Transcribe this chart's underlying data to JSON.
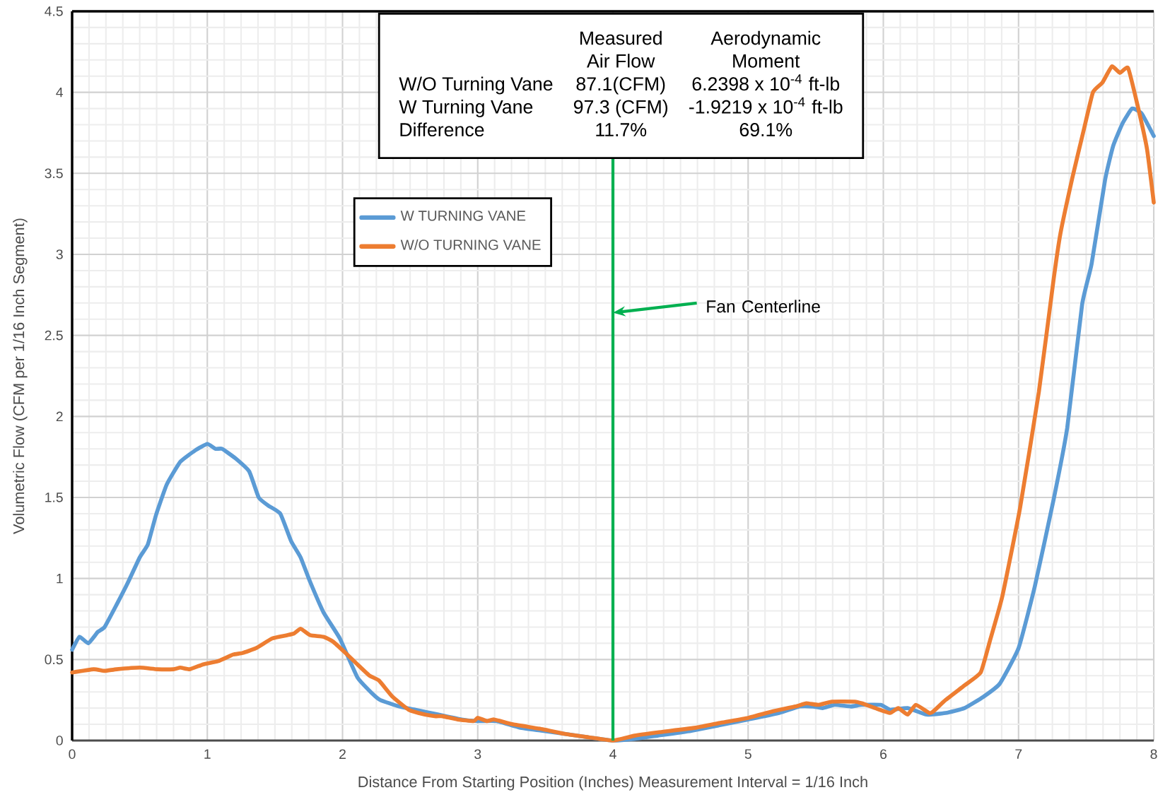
{
  "chart_data": {
    "type": "line",
    "xlabel": "Distance From Starting Position (Inches) Measurement Interval = 1/16 Inch",
    "ylabel": "Volumetric Flow (CFM per 1/16 Inch Segment)",
    "xlim": [
      0,
      8
    ],
    "ylim": [
      0,
      4.5
    ],
    "xticks": [
      0,
      1,
      2,
      3,
      4,
      5,
      6,
      7,
      8
    ],
    "yticks": [
      0,
      0.5,
      1,
      1.5,
      2,
      2.5,
      3,
      3.5,
      4,
      4.5
    ],
    "grid": true,
    "legend": "top left",
    "marker": "none",
    "line_style": "solid",
    "series": [
      {
        "name": "W TURNING VANE",
        "color": "#5b9bd5",
        "x": [
          0,
          0.055,
          0.12,
          0.19,
          0.24,
          0.33,
          0.41,
          0.5,
          0.56,
          0.62,
          0.7,
          0.8,
          0.91,
          1.0,
          1.06,
          1.11,
          1.21,
          1.31,
          1.38,
          1.45,
          1.54,
          1.62,
          1.69,
          1.76,
          1.86,
          1.98,
          2.11,
          2.22,
          2.28,
          2.42,
          2.54,
          2.71,
          2.88,
          3.0,
          3.14,
          3.31,
          3.48,
          3.65,
          3.82,
          4.0,
          4.16,
          4.33,
          4.58,
          5.0,
          5.23,
          5.38,
          5.48,
          5.55,
          5.64,
          5.76,
          5.84,
          5.98,
          6.05,
          6.18,
          6.32,
          6.46,
          6.6,
          6.74,
          6.86,
          7.0,
          7.12,
          7.26,
          7.36,
          7.47,
          7.54,
          7.64,
          7.7,
          7.77,
          7.84,
          7.91,
          8.0
        ],
        "values": [
          0.56,
          0.64,
          0.6,
          0.67,
          0.7,
          0.84,
          0.97,
          1.13,
          1.21,
          1.39,
          1.58,
          1.72,
          1.79,
          1.83,
          1.8,
          1.8,
          1.74,
          1.66,
          1.5,
          1.45,
          1.4,
          1.23,
          1.13,
          0.98,
          0.79,
          0.63,
          0.39,
          0.29,
          0.25,
          0.21,
          0.19,
          0.16,
          0.13,
          0.12,
          0.12,
          0.08,
          0.06,
          null,
          0.02,
          0.0,
          0.01,
          0.03,
          0.06,
          0.13,
          0.17,
          0.21,
          0.21,
          0.2,
          0.22,
          0.21,
          0.22,
          0.22,
          0.19,
          0.2,
          0.16,
          0.17,
          0.2,
          0.27,
          0.35,
          0.57,
          0.95,
          1.49,
          1.93,
          2.69,
          2.94,
          3.46,
          3.67,
          3.81,
          3.9,
          3.87,
          3.73
        ]
      },
      {
        "name": "W/O TURNING VANE",
        "color": "#ed7d31",
        "x": [
          0,
          0.16,
          0.24,
          0.33,
          0.5,
          0.63,
          0.75,
          0.8,
          0.87,
          0.97,
          1.08,
          1.19,
          1.26,
          1.36,
          1.48,
          1.59,
          1.64,
          1.69,
          1.76,
          1.86,
          1.93,
          2.01,
          2.11,
          2.2,
          2.27,
          2.37,
          2.49,
          2.61,
          2.69,
          2.74,
          2.85,
          2.97,
          3.0,
          3.07,
          3.12,
          3.26,
          3.48,
          3.65,
          3.82,
          4.0,
          4.16,
          4.33,
          4.62,
          4.8,
          5.0,
          5.18,
          5.35,
          5.43,
          5.52,
          5.62,
          5.79,
          5.84,
          5.94,
          6.05,
          6.11,
          6.18,
          6.24,
          6.34,
          6.37,
          6.46,
          6.6,
          6.72,
          6.79,
          6.88,
          7.01,
          7.15,
          7.26,
          7.31,
          7.4,
          7.48,
          7.55,
          7.62,
          7.69,
          7.75,
          7.81,
          7.88,
          7.95,
          8.0
        ],
        "values": [
          0.42,
          0.44,
          0.43,
          0.44,
          0.45,
          0.44,
          0.44,
          0.45,
          0.44,
          0.47,
          0.49,
          0.53,
          0.54,
          0.57,
          0.63,
          0.65,
          0.66,
          0.69,
          0.65,
          0.64,
          0.61,
          0.55,
          0.47,
          0.4,
          0.37,
          0.27,
          0.19,
          0.16,
          0.15,
          0.15,
          0.13,
          0.12,
          0.14,
          0.12,
          0.13,
          0.1,
          0.07,
          0.04,
          0.02,
          0.0,
          0.03,
          0.05,
          0.08,
          0.11,
          0.14,
          0.18,
          0.21,
          0.23,
          0.22,
          0.24,
          0.24,
          0.23,
          0.2,
          0.17,
          0.2,
          0.16,
          0.22,
          0.17,
          0.18,
          0.25,
          0.34,
          0.42,
          0.62,
          0.89,
          1.43,
          2.15,
          2.85,
          3.13,
          3.48,
          3.76,
          4.0,
          4.06,
          4.16,
          4.12,
          4.15,
          3.92,
          3.65,
          3.32
        ]
      }
    ],
    "ref_lines": [
      {
        "axis": "x",
        "value": 4,
        "label": "Fan Centerline",
        "color": "#00b050",
        "line_style": "solid"
      }
    ],
    "annotations": [
      "Measured",
      "Aerodynamic",
      "Air Flow",
      "Moment",
      "W/O Turning Vane",
      "87.1(CFM)",
      "6.2398 x 10$^{-4}$ ft-lb",
      "W Turning Vane",
      "97.3 (CFM)",
      "-1.9219 x 10$^{-4}$ ft-lb",
      "Difference",
      "11.7%",
      "69.1%"
    ]
  }
}
